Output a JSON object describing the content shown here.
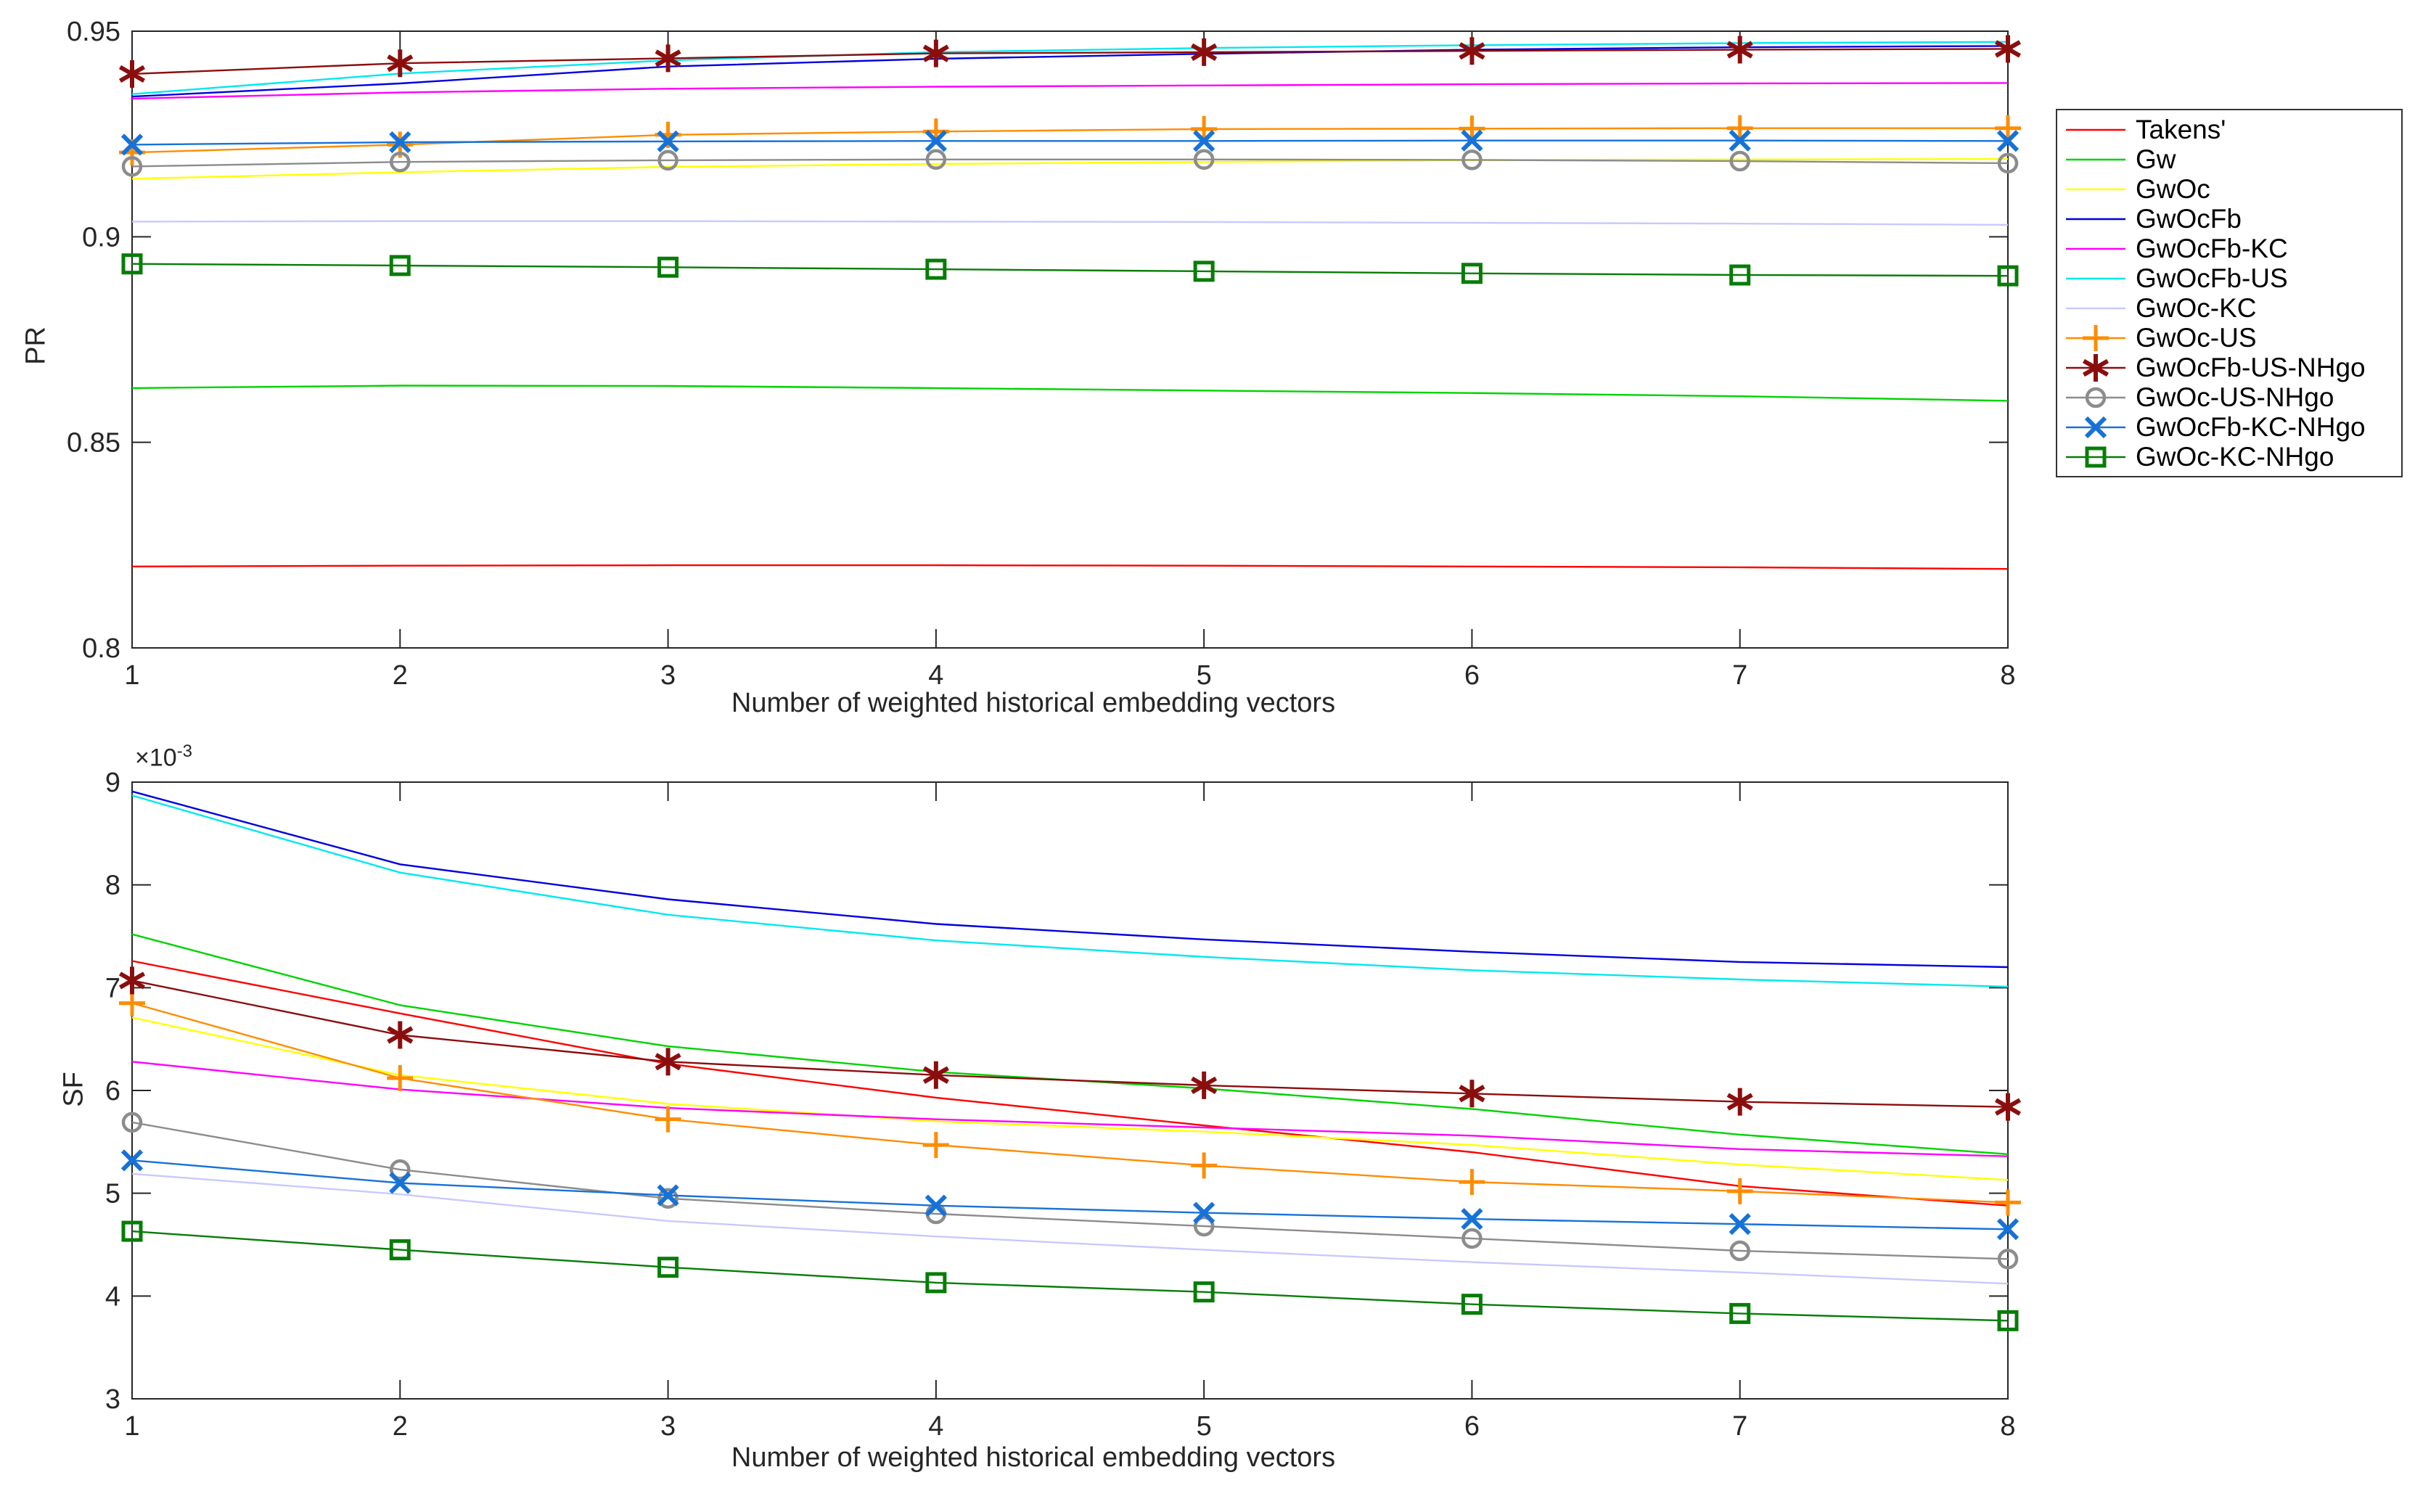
{
  "figure": {
    "background": "#ffffff"
  },
  "axes": {
    "shared_xlabel": "Number of weighted historical embedding vectors",
    "top_ylabel": "PR",
    "bottom_ylabel": "SF",
    "bottom_multiplier": {
      "base": "×10",
      "exp": "-3"
    }
  },
  "legend_items": [
    "Takens'",
    "Gw",
    "GwOc",
    "GwOcFb",
    "GwOcFb-KC",
    "GwOcFb-US",
    "GwOc-KC",
    "GwOc-US",
    "GwOcFb-US-NHgo",
    "GwOc-US-NHgo",
    "GwOcFb-KC-NHgo",
    "GwOc-KC-NHgo"
  ],
  "chart_data": [
    {
      "type": "line",
      "title": "",
      "xlabel": "Number of weighted historical embedding vectors",
      "ylabel": "PR",
      "x": [
        1,
        2,
        3,
        4,
        5,
        6,
        7,
        8
      ],
      "xlim": [
        1,
        8
      ],
      "ylim": [
        0.8,
        0.95
      ],
      "xticks": [
        1,
        2,
        3,
        4,
        5,
        6,
        7,
        8
      ],
      "xtick_labels": [
        "1",
        "2",
        "3",
        "4",
        "5",
        "6",
        "7",
        "8"
      ],
      "yticks": [
        0.8,
        0.85,
        0.9,
        0.95
      ],
      "ytick_labels": [
        "0.8",
        "0.85",
        "0.9",
        "0.95"
      ],
      "grid": false,
      "legend_position": "outside-right",
      "series": [
        {
          "name": "Takens'",
          "color": "#ff0000",
          "marker": "none",
          "values": [
            0.8198,
            0.82,
            0.8201,
            0.8201,
            0.82,
            0.8198,
            0.8196,
            0.8192
          ]
        },
        {
          "name": "Gw",
          "color": "#00d300",
          "marker": "none",
          "values": [
            0.8632,
            0.8638,
            0.8637,
            0.8632,
            0.8626,
            0.862,
            0.8612,
            0.8601
          ]
        },
        {
          "name": "GwOc",
          "color": "#ffff00",
          "marker": "none",
          "values": [
            0.9141,
            0.9157,
            0.917,
            0.9177,
            0.9182,
            0.9186,
            0.9188,
            0.9189
          ]
        },
        {
          "name": "GwOcFb",
          "color": "#0000e1",
          "marker": "none",
          "values": [
            0.9341,
            0.9373,
            0.9414,
            0.9433,
            0.9445,
            0.9455,
            0.9461,
            0.9464
          ]
        },
        {
          "name": "GwOcFb-KC",
          "color": "#ff00ff",
          "marker": "none",
          "values": [
            0.9336,
            0.9351,
            0.936,
            0.9365,
            0.9368,
            0.9371,
            0.9373,
            0.9374
          ]
        },
        {
          "name": "GwOcFb-US",
          "color": "#00e8f0",
          "marker": "none",
          "values": [
            0.9347,
            0.9397,
            0.9429,
            0.9449,
            0.9459,
            0.9466,
            0.9471,
            0.9474
          ]
        },
        {
          "name": "GwOc-KC",
          "color": "#c9c9ff",
          "marker": "none",
          "values": [
            0.9037,
            0.9038,
            0.9038,
            0.9037,
            0.9036,
            0.9034,
            0.9032,
            0.9029
          ]
        },
        {
          "name": "GwOc-US",
          "color": "#ff8c00",
          "marker": "plus",
          "values": [
            0.9205,
            0.9224,
            0.9248,
            0.9256,
            0.9262,
            0.9263,
            0.9264,
            0.9264
          ]
        },
        {
          "name": "GwOcFb-US-NHgo",
          "color": "#8b0e0e",
          "marker": "star",
          "values": [
            0.9396,
            0.9422,
            0.9434,
            0.9446,
            0.9449,
            0.9452,
            0.9455,
            0.9457
          ]
        },
        {
          "name": "GwOc-US-NHgo",
          "color": "#8c8c8c",
          "marker": "circle",
          "values": [
            0.9171,
            0.9182,
            0.9186,
            0.9188,
            0.9188,
            0.9187,
            0.9184,
            0.9179
          ]
        },
        {
          "name": "GwOcFb-KC-NHgo",
          "color": "#1772d8",
          "marker": "xcross",
          "values": [
            0.9224,
            0.923,
            0.9232,
            0.9233,
            0.9233,
            0.9234,
            0.9234,
            0.9233
          ]
        },
        {
          "name": "GwOc-KC-NHgo",
          "color": "#067d06",
          "marker": "square",
          "values": [
            0.8934,
            0.893,
            0.8926,
            0.8921,
            0.8916,
            0.8911,
            0.8907,
            0.8905
          ]
        }
      ]
    },
    {
      "type": "line",
      "title": "",
      "xlabel": "Number of weighted historical embedding vectors",
      "ylabel": "SF",
      "y_unit_multiplier": "1e-3",
      "x": [
        1,
        2,
        3,
        4,
        5,
        6,
        7,
        8
      ],
      "xlim": [
        1,
        8
      ],
      "ylim": [
        3,
        9
      ],
      "xticks": [
        1,
        2,
        3,
        4,
        5,
        6,
        7,
        8
      ],
      "xtick_labels": [
        "1",
        "2",
        "3",
        "4",
        "5",
        "6",
        "7",
        "8"
      ],
      "yticks": [
        3,
        4,
        5,
        6,
        7,
        8,
        9
      ],
      "ytick_labels": [
        "3",
        "4",
        "5",
        "6",
        "7",
        "8",
        "9"
      ],
      "grid": false,
      "series": [
        {
          "name": "Takens'",
          "color": "#ff0000",
          "marker": "none",
          "values": [
            7.26,
            6.75,
            6.26,
            5.93,
            5.66,
            5.4,
            5.07,
            4.88
          ]
        },
        {
          "name": "Gw",
          "color": "#00d300",
          "marker": "none",
          "values": [
            7.52,
            6.83,
            6.43,
            6.18,
            6.02,
            5.82,
            5.57,
            5.38
          ]
        },
        {
          "name": "GwOc",
          "color": "#ffff00",
          "marker": "none",
          "values": [
            6.71,
            6.15,
            5.87,
            5.7,
            5.6,
            5.47,
            5.28,
            5.13
          ]
        },
        {
          "name": "GwOcFb",
          "color": "#0000e1",
          "marker": "none",
          "values": [
            8.91,
            8.2,
            7.86,
            7.62,
            7.47,
            7.35,
            7.25,
            7.2
          ]
        },
        {
          "name": "GwOcFb-KC",
          "color": "#ff00ff",
          "marker": "none",
          "values": [
            6.28,
            6.01,
            5.83,
            5.72,
            5.64,
            5.56,
            5.43,
            5.36
          ]
        },
        {
          "name": "GwOcFb-US",
          "color": "#00e8f0",
          "marker": "none",
          "values": [
            8.87,
            8.12,
            7.71,
            7.46,
            7.3,
            7.17,
            7.08,
            7.01
          ]
        },
        {
          "name": "GwOc-KC",
          "color": "#c9c9ff",
          "marker": "none",
          "values": [
            5.19,
            4.99,
            4.73,
            4.58,
            4.45,
            4.33,
            4.23,
            4.12
          ]
        },
        {
          "name": "GwOc-US",
          "color": "#ff8c00",
          "marker": "plus",
          "values": [
            6.85,
            6.12,
            5.72,
            5.47,
            5.27,
            5.11,
            5.02,
            4.91
          ]
        },
        {
          "name": "GwOcFb-US-NHgo",
          "color": "#8b0e0e",
          "marker": "star",
          "values": [
            7.07,
            6.54,
            6.28,
            6.15,
            6.05,
            5.97,
            5.89,
            5.84
          ]
        },
        {
          "name": "GwOc-US-NHgo",
          "color": "#8c8c8c",
          "marker": "circle",
          "values": [
            5.69,
            5.23,
            4.95,
            4.8,
            4.68,
            4.56,
            4.44,
            4.36
          ]
        },
        {
          "name": "GwOcFb-KC-NHgo",
          "color": "#1772d8",
          "marker": "xcross",
          "values": [
            5.32,
            5.1,
            4.98,
            4.88,
            4.81,
            4.75,
            4.7,
            4.65
          ]
        },
        {
          "name": "GwOc-KC-NHgo",
          "color": "#067d06",
          "marker": "square",
          "values": [
            4.63,
            4.45,
            4.28,
            4.13,
            4.04,
            3.92,
            3.83,
            3.76
          ]
        }
      ]
    }
  ]
}
